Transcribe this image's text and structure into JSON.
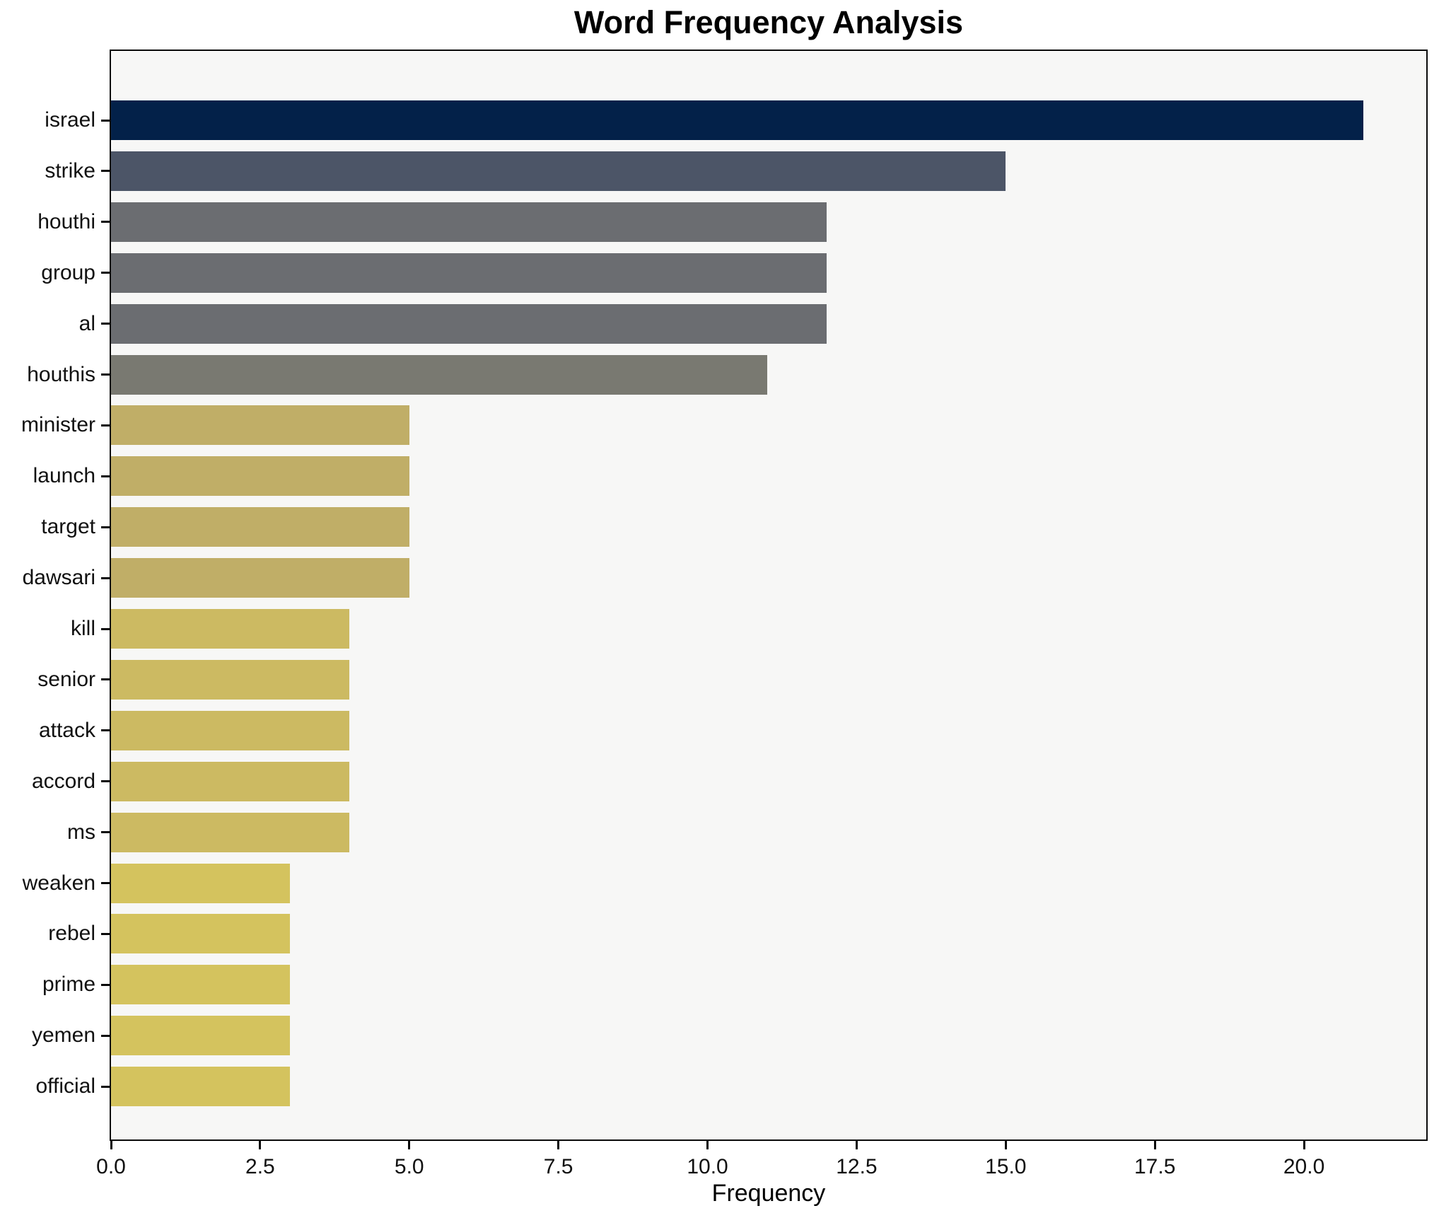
{
  "chart_data": {
    "type": "bar",
    "orientation": "horizontal",
    "title": "Word Frequency Analysis",
    "xlabel": "Frequency",
    "ylabel": "",
    "categories": [
      "israel",
      "strike",
      "houthi",
      "group",
      "al",
      "houthis",
      "minister",
      "launch",
      "target",
      "dawsari",
      "kill",
      "senior",
      "attack",
      "accord",
      "ms",
      "weaken",
      "rebel",
      "prime",
      "yemen",
      "official"
    ],
    "values": [
      21,
      15,
      12,
      12,
      12,
      11,
      5,
      5,
      5,
      5,
      4,
      4,
      4,
      4,
      4,
      3,
      3,
      3,
      3,
      3
    ],
    "bar_colors": [
      "#032149",
      "#4c5567",
      "#6b6d71",
      "#6b6d71",
      "#6b6d71",
      "#797971",
      "#c0ae67",
      "#c0ae67",
      "#c0ae67",
      "#c0ae67",
      "#ccba62",
      "#ccba62",
      "#ccba62",
      "#ccba62",
      "#ccba62",
      "#d4c35e",
      "#d4c35e",
      "#d4c35e",
      "#d4c35e",
      "#d4c35e"
    ],
    "xlim": [
      0,
      22.05
    ],
    "xticks": [
      0,
      2.5,
      5,
      7.5,
      10,
      12.5,
      15,
      17.5,
      20
    ],
    "xtick_labels": [
      "0.0",
      "2.5",
      "5.0",
      "7.5",
      "10.0",
      "12.5",
      "15.0",
      "17.5",
      "20.0"
    ],
    "grid": false,
    "legend": null,
    "plot_background": "#f7f7f6",
    "spine_color": "#0a0a0a"
  }
}
